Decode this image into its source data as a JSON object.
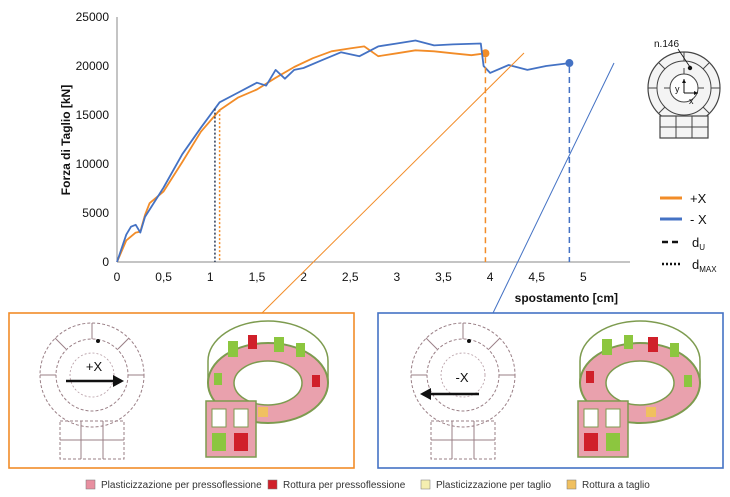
{
  "chart_data": {
    "type": "line",
    "xlabel": "spostamento [cm]",
    "ylabel": "Forza di Taglio [kN]",
    "xlim": [
      0,
      5.5
    ],
    "ylim": [
      0,
      25000
    ],
    "xticks": [
      "0",
      "0,5",
      "1",
      "1,5",
      "2",
      "2,5",
      "3",
      "3,5",
      "4",
      "4,5",
      "5"
    ],
    "yticks": [
      "0",
      "5000",
      "10000",
      "15000",
      "20000",
      "25000"
    ],
    "grid": false,
    "series": [
      {
        "name": "+X",
        "color": "#F28C28",
        "x": [
          0,
          0.1,
          0.2,
          0.25,
          0.3,
          0.35,
          0.5,
          0.7,
          0.9,
          1.1,
          1.3,
          1.5,
          1.7,
          1.9,
          2.1,
          2.3,
          2.5,
          2.65,
          2.8,
          3.0,
          3.2,
          3.4,
          3.6,
          3.8,
          3.95
        ],
        "y": [
          0,
          2200,
          3000,
          3100,
          4800,
          6000,
          7200,
          10200,
          13300,
          15500,
          16800,
          17600,
          18800,
          19900,
          20800,
          21500,
          21800,
          22000,
          21000,
          21300,
          21600,
          21500,
          21300,
          21100,
          21300
        ],
        "end_point": [
          3.95,
          21300
        ],
        "d_u": 3.95,
        "d_max": 1.1
      },
      {
        "name": "- X",
        "color": "#4472C4",
        "x": [
          0,
          0.1,
          0.15,
          0.2,
          0.25,
          0.3,
          0.5,
          0.7,
          0.9,
          1.1,
          1.3,
          1.5,
          1.6,
          1.7,
          1.8,
          1.9,
          2.0,
          2.2,
          2.4,
          2.6,
          2.8,
          3.0,
          3.2,
          3.4,
          3.6,
          3.9,
          3.93,
          4.0,
          4.2,
          4.4,
          4.6,
          4.85
        ],
        "y": [
          0,
          2800,
          3600,
          3800,
          3000,
          4600,
          7600,
          11000,
          13700,
          16300,
          17300,
          18300,
          18000,
          19600,
          18700,
          19600,
          19800,
          20600,
          21400,
          21000,
          22000,
          22300,
          22600,
          22100,
          22200,
          22300,
          20000,
          19300,
          20100,
          19600,
          20000,
          20300
        ],
        "end_point": [
          4.85,
          20300
        ],
        "d_u": 4.85,
        "d_max": 1.05
      }
    ]
  },
  "legend": {
    "plus_x": "+X",
    "minus_x": "- X",
    "du_main": "d",
    "du_sub": "U",
    "dmax_main": "d",
    "dmax_sub": "MAX"
  },
  "plan_icon": {
    "label": "n.146",
    "axis_x": "x",
    "axis_y": "y"
  },
  "panels": {
    "left_label": "+X",
    "left_color": "#F28C28",
    "right_label": "-X",
    "right_color": "#4472C4"
  },
  "bottom_legend": [
    {
      "label": "Plasticizzazione per pressoflessione",
      "color": "#E88FA0"
    },
    {
      "label": "Rottura per pressoflessione",
      "color": "#D0202A"
    },
    {
      "label": "Plasticizzazione per taglio",
      "color": "#F5EFB0"
    },
    {
      "label": "Rottura a taglio",
      "color": "#F0C060"
    }
  ]
}
